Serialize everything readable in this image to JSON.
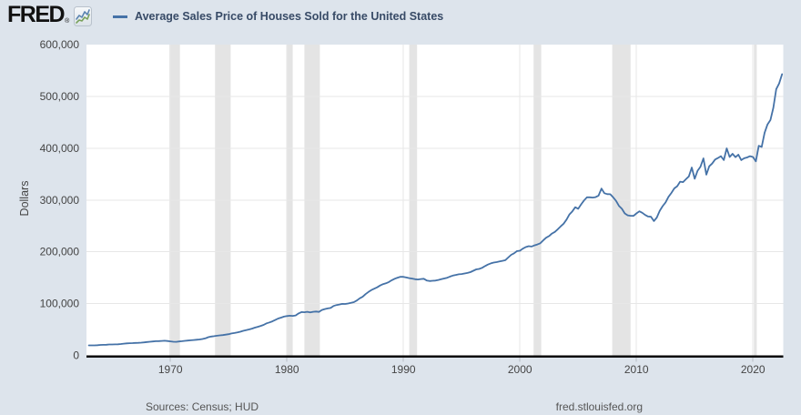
{
  "header": {
    "logo_text": "FRED",
    "registered_mark": "®",
    "series_title": "Average Sales Price of Houses Sold for the United States"
  },
  "footer": {
    "sources": "Sources: Census; HUD",
    "site": "fred.stlouisfed.org"
  },
  "colors": {
    "page_bg": "#dde4ec",
    "plot_bg": "#ffffff",
    "line": "#4572a7",
    "grid": "#e7e7e7",
    "recession": "#e4e4e4",
    "axis": "#000000",
    "tick_text": "#444444",
    "tick_mark": "#b6bcc3",
    "title_text": "#374a66",
    "footer_text": "#555555"
  },
  "chart_data": {
    "type": "line",
    "title": "Average Sales Price of Houses Sold for the United States",
    "xlabel": "",
    "ylabel": "Dollars",
    "units": "Dollars",
    "frequency": "quarterly",
    "legend_position": "top",
    "grid": true,
    "xlim": [
      1962.8,
      2022.6
    ],
    "ylim": [
      0,
      600000
    ],
    "x_ticks": {
      "values": [
        1970,
        1980,
        1990,
        2000,
        2010,
        2020
      ],
      "labels": [
        "1970",
        "1980",
        "1990",
        "2000",
        "2010",
        "2020"
      ]
    },
    "y_ticks": {
      "values": [
        0,
        100000,
        200000,
        300000,
        400000,
        500000,
        600000
      ],
      "labels": [
        "0",
        "100,000",
        "200,000",
        "300,000",
        "400,000",
        "500,000",
        "600,000"
      ]
    },
    "recessions": [
      [
        1969.92,
        1970.83
      ],
      [
        1973.83,
        1975.17
      ],
      [
        1980.0,
        1980.5
      ],
      [
        1981.5,
        1982.83
      ],
      [
        1990.5,
        1991.17
      ],
      [
        2001.17,
        2001.83
      ],
      [
        2007.92,
        2009.5
      ],
      [
        2020.08,
        2020.33
      ]
    ],
    "x_start": 1963.0,
    "x_step_years": 0.25,
    "x_end": 2022.5,
    "values": [
      19300,
      19400,
      19250,
      19600,
      20200,
      20300,
      20500,
      21000,
      21100,
      21200,
      21500,
      22000,
      22600,
      23200,
      23500,
      23800,
      24000,
      24200,
      24600,
      25200,
      25800,
      26300,
      26900,
      27400,
      27600,
      28000,
      28200,
      27800,
      27100,
      26300,
      26200,
      26800,
      27400,
      28100,
      28700,
      29200,
      29700,
      30200,
      30800,
      31700,
      32900,
      35100,
      36300,
      37100,
      38000,
      38600,
      39200,
      40000,
      41000,
      42300,
      43200,
      44200,
      45600,
      47500,
      48700,
      50100,
      51600,
      53500,
      55100,
      56900,
      58900,
      61800,
      63600,
      65700,
      68400,
      71100,
      72900,
      74900,
      75900,
      76600,
      76300,
      77100,
      81000,
      83700,
      83300,
      84100,
      82900,
      84100,
      84600,
      83900,
      87700,
      89400,
      90700,
      91500,
      95400,
      97200,
      98200,
      99500,
      99200,
      100100,
      101300,
      102700,
      106000,
      110200,
      113200,
      118200,
      122500,
      126100,
      128800,
      131400,
      135000,
      137600,
      139100,
      141600,
      145100,
      148000,
      150100,
      151800,
      151600,
      150400,
      149100,
      148200,
      147100,
      146600,
      147400,
      147900,
      144600,
      143600,
      144000,
      144400,
      145600,
      147100,
      148400,
      149800,
      152100,
      154100,
      155400,
      156600,
      157100,
      158100,
      159100,
      160700,
      163400,
      166100,
      166900,
      169100,
      172400,
      175400,
      177600,
      179200,
      180100,
      181400,
      182600,
      183700,
      189100,
      194100,
      197100,
      201400,
      202100,
      206100,
      209100,
      210900,
      210100,
      212400,
      214100,
      216400,
      222100,
      227100,
      230400,
      235200,
      238400,
      243600,
      249100,
      254300,
      262100,
      272100,
      278100,
      286100,
      283100,
      291400,
      299100,
      305100,
      305200,
      304600,
      305600,
      308600,
      322100,
      313100,
      311400,
      311100,
      305100,
      298400,
      288600,
      283100,
      274100,
      270400,
      269600,
      269400,
      274100,
      278100,
      275400,
      271100,
      268100,
      267600,
      259400,
      266100,
      279100,
      288100,
      295400,
      306100,
      313600,
      322400,
      326600,
      335400,
      334600,
      340100,
      345600,
      362700,
      341100,
      356400,
      364400,
      380400,
      348900,
      365100,
      370400,
      378100,
      381100,
      384600,
      377100,
      399700,
      383100,
      389100,
      382600,
      387400,
      377100,
      380600,
      382100,
      384600,
      383000,
      374500,
      404700,
      402600,
      429700,
      446000,
      454300,
      477900,
      514100,
      525000,
      542900
    ]
  }
}
